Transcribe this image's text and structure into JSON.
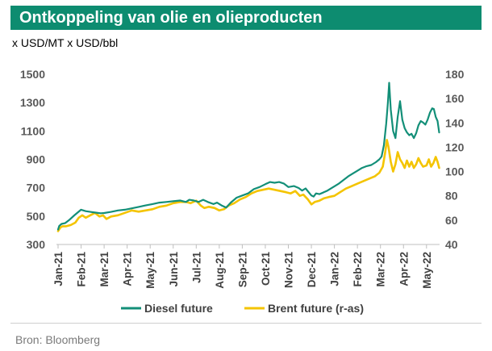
{
  "header": {
    "title": "Ontkoppeling van olie en olieproducten",
    "units": "x USD/MT x USD/bbl"
  },
  "footer": {
    "source": "Bron: Bloomberg"
  },
  "colors": {
    "banner": "#0d8c70",
    "diesel": "#138f78",
    "brent": "#f4c400",
    "axis": "#bfbfbf"
  },
  "chart_data": {
    "type": "line",
    "title": "Ontkoppeling van olie en olieproducten",
    "x_labels": [
      "Jan-21",
      "Feb-21",
      "Mar-21",
      "Apr-21",
      "May-21",
      "Jun-21",
      "Jul-21",
      "Aug-21",
      "Sep-21",
      "Oct-21",
      "Nov-21",
      "Dec-21",
      "Jan-22",
      "Feb-22",
      "Mar-22",
      "Apr-22",
      "May-22"
    ],
    "y_left": {
      "label": "USD/MT",
      "ticks": [
        "1500",
        "1300",
        "1100",
        "900",
        "700",
        "500",
        "300"
      ],
      "range": [
        300,
        1500
      ]
    },
    "y_right": {
      "label": "USD/bbl",
      "ticks": [
        "180",
        "160",
        "140",
        "120",
        "100",
        "80",
        "60",
        "40"
      ],
      "range": [
        40,
        180
      ]
    },
    "legend": [
      "Diesel future",
      "Brent future (r-as)"
    ],
    "series": [
      {
        "name": "Diesel future",
        "axis": "left",
        "points": [
          [
            0.0,
            405
          ],
          [
            0.05,
            430
          ],
          [
            0.15,
            445
          ],
          [
            0.3,
            450
          ],
          [
            0.5,
            475
          ],
          [
            0.7,
            505
          ],
          [
            0.85,
            525
          ],
          [
            1.0,
            545
          ],
          [
            1.2,
            535
          ],
          [
            1.4,
            530
          ],
          [
            1.6,
            525
          ],
          [
            1.85,
            520
          ],
          [
            2.0,
            522
          ],
          [
            2.3,
            530
          ],
          [
            2.6,
            540
          ],
          [
            2.9,
            545
          ],
          [
            3.2,
            555
          ],
          [
            3.5,
            565
          ],
          [
            3.8,
            575
          ],
          [
            4.1,
            585
          ],
          [
            4.4,
            595
          ],
          [
            4.7,
            600
          ],
          [
            5.0,
            605
          ],
          [
            5.3,
            610
          ],
          [
            5.55,
            600
          ],
          [
            5.7,
            615
          ],
          [
            5.9,
            610
          ],
          [
            6.1,
            600
          ],
          [
            6.3,
            615
          ],
          [
            6.5,
            600
          ],
          [
            6.75,
            585
          ],
          [
            6.9,
            595
          ],
          [
            7.1,
            575
          ],
          [
            7.3,
            560
          ],
          [
            7.5,
            595
          ],
          [
            7.75,
            630
          ],
          [
            8.0,
            645
          ],
          [
            8.25,
            660
          ],
          [
            8.5,
            690
          ],
          [
            8.75,
            705
          ],
          [
            9.0,
            725
          ],
          [
            9.2,
            740
          ],
          [
            9.4,
            735
          ],
          [
            9.6,
            740
          ],
          [
            9.8,
            730
          ],
          [
            10.0,
            705
          ],
          [
            10.25,
            712
          ],
          [
            10.45,
            698
          ],
          [
            10.6,
            680
          ],
          [
            10.75,
            695
          ],
          [
            10.9,
            665
          ],
          [
            11.0,
            645
          ],
          [
            11.1,
            638
          ],
          [
            11.2,
            660
          ],
          [
            11.35,
            655
          ],
          [
            11.5,
            665
          ],
          [
            11.7,
            680
          ],
          [
            11.9,
            700
          ],
          [
            12.0,
            710
          ],
          [
            12.2,
            730
          ],
          [
            12.4,
            755
          ],
          [
            12.6,
            780
          ],
          [
            12.8,
            800
          ],
          [
            13.0,
            820
          ],
          [
            13.2,
            840
          ],
          [
            13.4,
            852
          ],
          [
            13.6,
            860
          ],
          [
            13.8,
            880
          ],
          [
            13.95,
            900
          ],
          [
            14.05,
            920
          ],
          [
            14.15,
            1000
          ],
          [
            14.25,
            1150
          ],
          [
            14.32,
            1290
          ],
          [
            14.38,
            1440
          ],
          [
            14.45,
            1250
          ],
          [
            14.55,
            1100
          ],
          [
            14.65,
            1050
          ],
          [
            14.75,
            1200
          ],
          [
            14.85,
            1310
          ],
          [
            14.95,
            1180
          ],
          [
            15.05,
            1120
          ],
          [
            15.15,
            1090
          ],
          [
            15.25,
            1070
          ],
          [
            15.35,
            1080
          ],
          [
            15.45,
            1050
          ],
          [
            15.55,
            1085
          ],
          [
            15.65,
            1140
          ],
          [
            15.75,
            1170
          ],
          [
            15.85,
            1160
          ],
          [
            15.95,
            1145
          ],
          [
            16.05,
            1180
          ],
          [
            16.15,
            1230
          ],
          [
            16.25,
            1260
          ],
          [
            16.32,
            1255
          ],
          [
            16.4,
            1200
          ],
          [
            16.48,
            1170
          ],
          [
            16.55,
            1090
          ]
        ]
      },
      {
        "name": "Brent future (r-as)",
        "axis": "right",
        "points": [
          [
            0.0,
            51
          ],
          [
            0.1,
            54
          ],
          [
            0.2,
            55
          ],
          [
            0.35,
            55
          ],
          [
            0.55,
            56
          ],
          [
            0.75,
            58
          ],
          [
            0.9,
            62
          ],
          [
            1.05,
            64
          ],
          [
            1.2,
            62
          ],
          [
            1.4,
            64
          ],
          [
            1.6,
            66
          ],
          [
            1.8,
            63
          ],
          [
            1.95,
            64
          ],
          [
            2.1,
            61
          ],
          [
            2.3,
            63
          ],
          [
            2.6,
            64
          ],
          [
            2.9,
            66
          ],
          [
            3.2,
            68
          ],
          [
            3.5,
            67
          ],
          [
            3.8,
            68
          ],
          [
            4.1,
            69
          ],
          [
            4.4,
            71
          ],
          [
            4.7,
            72
          ],
          [
            5.0,
            74
          ],
          [
            5.3,
            75
          ],
          [
            5.55,
            75
          ],
          [
            5.75,
            74
          ],
          [
            6.0,
            76
          ],
          [
            6.2,
            72
          ],
          [
            6.35,
            70
          ],
          [
            6.55,
            71
          ],
          [
            6.8,
            70
          ],
          [
            7.0,
            68
          ],
          [
            7.2,
            69
          ],
          [
            7.4,
            72
          ],
          [
            7.65,
            74
          ],
          [
            7.9,
            77
          ],
          [
            8.15,
            79
          ],
          [
            8.4,
            82
          ],
          [
            8.65,
            84
          ],
          [
            8.9,
            85
          ],
          [
            9.15,
            86
          ],
          [
            9.4,
            85
          ],
          [
            9.65,
            84
          ],
          [
            9.9,
            83
          ],
          [
            10.1,
            82
          ],
          [
            10.3,
            84
          ],
          [
            10.5,
            80
          ],
          [
            10.65,
            81
          ],
          [
            10.85,
            77
          ],
          [
            11.0,
            73
          ],
          [
            11.15,
            75
          ],
          [
            11.35,
            76
          ],
          [
            11.55,
            78
          ],
          [
            11.75,
            79
          ],
          [
            12.0,
            80
          ],
          [
            12.25,
            83
          ],
          [
            12.5,
            86
          ],
          [
            12.75,
            88
          ],
          [
            13.0,
            90
          ],
          [
            13.25,
            92
          ],
          [
            13.5,
            94
          ],
          [
            13.75,
            96
          ],
          [
            13.95,
            99
          ],
          [
            14.1,
            104
          ],
          [
            14.2,
            115
          ],
          [
            14.28,
            126
          ],
          [
            14.35,
            120
          ],
          [
            14.45,
            108
          ],
          [
            14.55,
            100
          ],
          [
            14.65,
            106
          ],
          [
            14.75,
            116
          ],
          [
            14.85,
            110
          ],
          [
            14.95,
            107
          ],
          [
            15.05,
            103
          ],
          [
            15.15,
            109
          ],
          [
            15.25,
            104
          ],
          [
            15.35,
            108
          ],
          [
            15.45,
            103
          ],
          [
            15.55,
            106
          ],
          [
            15.65,
            111
          ],
          [
            15.75,
            107
          ],
          [
            15.85,
            104
          ],
          [
            16.0,
            105
          ],
          [
            16.1,
            110
          ],
          [
            16.2,
            104
          ],
          [
            16.3,
            107
          ],
          [
            16.4,
            112
          ],
          [
            16.48,
            108
          ],
          [
            16.55,
            103
          ]
        ]
      }
    ]
  }
}
